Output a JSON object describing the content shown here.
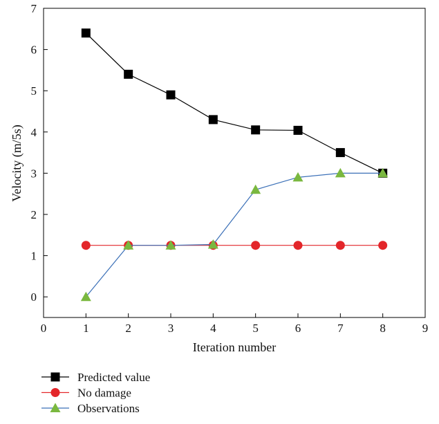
{
  "chart_data": {
    "type": "line",
    "xlabel": "Iteration number",
    "ylabel": "Velocity (m/5s)",
    "xlim": [
      0,
      9
    ],
    "ylim": [
      -0.5,
      7
    ],
    "xticks": [
      0,
      1,
      2,
      3,
      4,
      5,
      6,
      7,
      8,
      9
    ],
    "yticks": [
      0,
      1,
      2,
      3,
      4,
      5,
      6,
      7
    ],
    "grid": false,
    "legend_position": "bottom-left, below plot",
    "x": [
      1,
      2,
      3,
      4,
      5,
      6,
      7,
      8
    ],
    "series": [
      {
        "name": "Predicted value",
        "color": "#000000",
        "marker": "square",
        "values": [
          6.4,
          5.4,
          4.9,
          4.3,
          4.05,
          4.04,
          3.5,
          3.0
        ]
      },
      {
        "name": "No damage",
        "color": "#e3262a",
        "marker": "circle",
        "values": [
          1.25,
          1.25,
          1.25,
          1.25,
          1.25,
          1.25,
          1.25,
          1.25
        ]
      },
      {
        "name": "Observations",
        "color": "#3a6fb7",
        "marker_color": "#7ab83f",
        "marker": "triangle",
        "values": [
          0.0,
          1.25,
          1.25,
          1.27,
          2.6,
          2.9,
          3.0,
          3.0
        ]
      }
    ]
  }
}
